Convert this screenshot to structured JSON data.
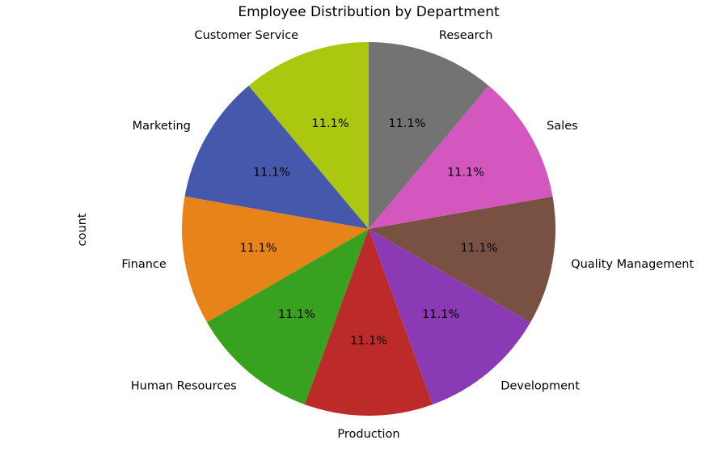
{
  "chart_data": {
    "type": "pie",
    "title": "Employee Distribution by Department",
    "ylabel": "count",
    "autopct_format": "%.1f%%",
    "start_angle": 90,
    "direction": "counterclockwise",
    "slices": [
      {
        "label": "Customer Service",
        "value": 1,
        "percent_label": "11.1%",
        "color": "#acc70f"
      },
      {
        "label": "Marketing",
        "value": 1,
        "percent_label": "11.1%",
        "color": "#4558ab"
      },
      {
        "label": "Finance",
        "value": 1,
        "percent_label": "11.1%",
        "color": "#e68319"
      },
      {
        "label": "Human Resources",
        "value": 1,
        "percent_label": "11.1%",
        "color": "#38a11f"
      },
      {
        "label": "Production",
        "value": 1,
        "percent_label": "11.1%",
        "color": "#bc2a29"
      },
      {
        "label": "Development",
        "value": 1,
        "percent_label": "11.1%",
        "color": "#8b3ab5"
      },
      {
        "label": "Quality Management",
        "value": 1,
        "percent_label": "11.1%",
        "color": "#795143"
      },
      {
        "label": "Sales",
        "value": 1,
        "percent_label": "11.1%",
        "color": "#d357be"
      },
      {
        "label": "Research",
        "value": 1,
        "percent_label": "11.1%",
        "color": "#737373"
      }
    ]
  }
}
